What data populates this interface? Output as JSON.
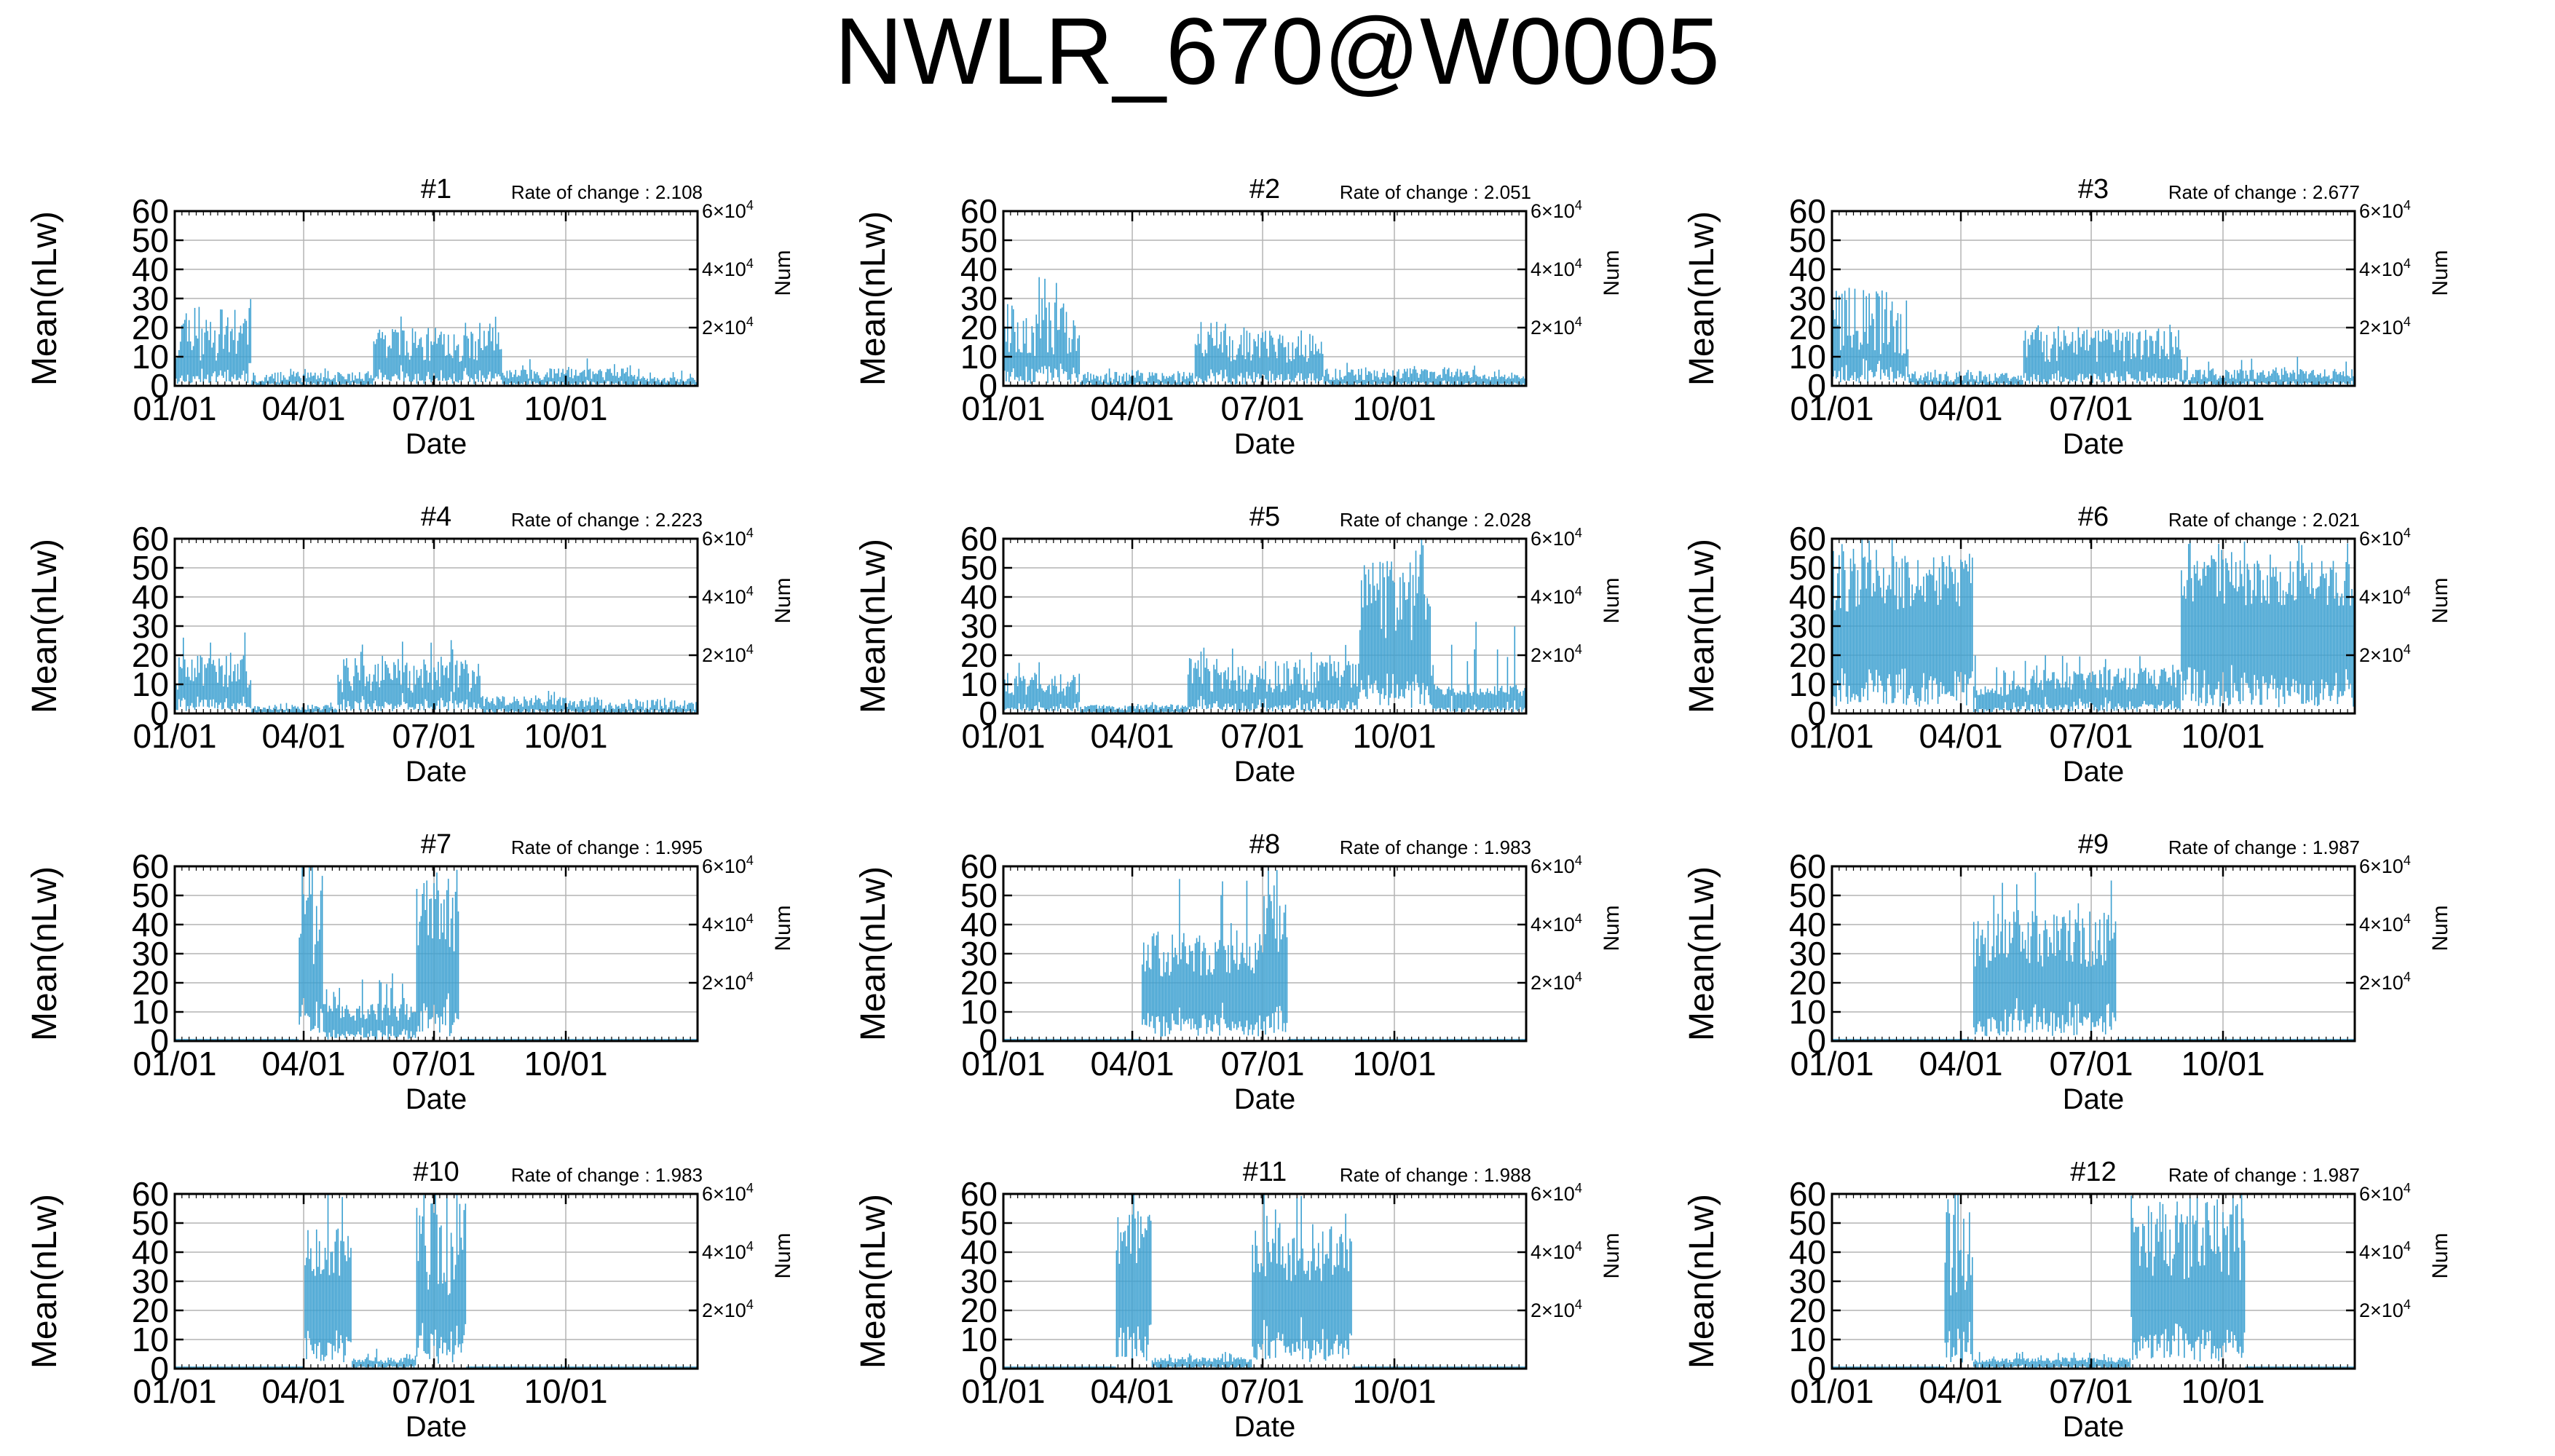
{
  "figure": {
    "title": "NWLR_670@W0005",
    "line_color": "#3a9fd0",
    "grid_color": "#b4b4b4"
  },
  "chart_data": [
    {
      "type": "bar",
      "title": "#1",
      "annotation": "Rate of change : 2.108",
      "xlabel": "Date",
      "ylabel": "Mean(nLw)",
      "y2label": "Num",
      "x_ticks": [
        "01/01",
        "04/01",
        "07/01",
        "10/01"
      ],
      "y_ticks": [
        "0",
        "10",
        "20",
        "30",
        "40",
        "50",
        "60"
      ],
      "ylim": [
        0,
        60
      ],
      "y2_ticks": [
        {
          "mant": "2",
          "exp": "4",
          "value": 20000
        },
        {
          "mant": "4",
          "exp": "4",
          "value": 40000
        },
        {
          "mant": "6",
          "exp": "4",
          "value": 60000
        }
      ],
      "y2lim": [
        0,
        60000
      ],
      "grid": true,
      "pattern": {
        "segments": [
          [
            1,
            55,
            18,
            10,
            30
          ],
          [
            55,
            140,
            3,
            2,
            6
          ],
          [
            140,
            230,
            14,
            6,
            24
          ],
          [
            230,
            330,
            4,
            2,
            10
          ],
          [
            330,
            366,
            2,
            1,
            6
          ]
        ],
        "seed": 11
      }
    },
    {
      "type": "bar",
      "title": "#2",
      "annotation": "Rate of change : 2.051",
      "xlabel": "Date",
      "ylabel": "Mean(nLw)",
      "y2label": "Num",
      "x_ticks": [
        "01/01",
        "04/01",
        "07/01",
        "10/01"
      ],
      "y_ticks": [
        "0",
        "10",
        "20",
        "30",
        "40",
        "50",
        "60"
      ],
      "ylim": [
        0,
        60
      ],
      "y2_ticks": [
        {
          "mant": "2",
          "exp": "4",
          "value": 20000
        },
        {
          "mant": "4",
          "exp": "4",
          "value": 40000
        },
        {
          "mant": "6",
          "exp": "4",
          "value": 60000
        }
      ],
      "y2lim": [
        0,
        60000
      ],
      "grid": true,
      "pattern": {
        "segments": [
          [
            1,
            55,
            20,
            10,
            38
          ],
          [
            55,
            135,
            3,
            2,
            6
          ],
          [
            135,
            225,
            14,
            6,
            22
          ],
          [
            225,
            330,
            4,
            2,
            8
          ],
          [
            330,
            366,
            3,
            1,
            7
          ]
        ],
        "seed": 23
      }
    },
    {
      "type": "bar",
      "title": "#3",
      "annotation": "Rate of change : 2.677",
      "xlabel": "Date",
      "ylabel": "Mean(nLw)",
      "y2label": "Num",
      "x_ticks": [
        "01/01",
        "04/01",
        "07/01",
        "10/01"
      ],
      "y_ticks": [
        "0",
        "10",
        "20",
        "30",
        "40",
        "50",
        "60"
      ],
      "ylim": [
        0,
        60
      ],
      "y2_ticks": [
        {
          "mant": "2",
          "exp": "4",
          "value": 20000
        },
        {
          "mant": "4",
          "exp": "4",
          "value": 40000
        },
        {
          "mant": "6",
          "exp": "4",
          "value": 60000
        }
      ],
      "y2lim": [
        0,
        60000
      ],
      "grid": true,
      "pattern": {
        "segments": [
          [
            1,
            55,
            22,
            12,
            36
          ],
          [
            55,
            135,
            3,
            2,
            6
          ],
          [
            135,
            245,
            14,
            6,
            22
          ],
          [
            245,
            330,
            4,
            2,
            10
          ],
          [
            330,
            366,
            4,
            2,
            9
          ]
        ],
        "seed": 37
      }
    },
    {
      "type": "bar",
      "title": "#4",
      "annotation": "Rate of change : 2.223",
      "xlabel": "Date",
      "ylabel": "Mean(nLw)",
      "y2label": "Num",
      "x_ticks": [
        "01/01",
        "04/01",
        "07/01",
        "10/01"
      ],
      "y_ticks": [
        "0",
        "10",
        "20",
        "30",
        "40",
        "50",
        "60"
      ],
      "ylim": [
        0,
        60
      ],
      "y2_ticks": [
        {
          "mant": "2",
          "exp": "4",
          "value": 20000
        },
        {
          "mant": "4",
          "exp": "4",
          "value": 40000
        },
        {
          "mant": "6",
          "exp": "4",
          "value": 60000
        }
      ],
      "y2lim": [
        0,
        60000
      ],
      "grid": true,
      "pattern": {
        "segments": [
          [
            1,
            55,
            14,
            6,
            28
          ],
          [
            55,
            115,
            2,
            1,
            4
          ],
          [
            115,
            215,
            13,
            6,
            26
          ],
          [
            215,
            300,
            4,
            2,
            8
          ],
          [
            300,
            366,
            3,
            2,
            6
          ]
        ],
        "seed": 41
      }
    },
    {
      "type": "bar",
      "title": "#5",
      "annotation": "Rate of change : 2.028",
      "xlabel": "Date",
      "ylabel": "Mean(nLw)",
      "y2label": "Num",
      "x_ticks": [
        "01/01",
        "04/01",
        "07/01",
        "10/01"
      ],
      "y_ticks": [
        "0",
        "10",
        "20",
        "30",
        "40",
        "50",
        "60"
      ],
      "ylim": [
        0,
        60
      ],
      "y2_ticks": [
        {
          "mant": "2",
          "exp": "4",
          "value": 20000
        },
        {
          "mant": "4",
          "exp": "4",
          "value": 40000
        },
        {
          "mant": "6",
          "exp": "4",
          "value": 60000
        }
      ],
      "y2lim": [
        0,
        60000
      ],
      "grid": true,
      "pattern": {
        "segments": [
          [
            1,
            55,
            10,
            4,
            20
          ],
          [
            55,
            130,
            2,
            1,
            4
          ],
          [
            130,
            250,
            13,
            6,
            24
          ],
          [
            250,
            300,
            40,
            15,
            60
          ],
          [
            300,
            366,
            8,
            2,
            40
          ]
        ],
        "seed": 53
      }
    },
    {
      "type": "bar",
      "title": "#6",
      "annotation": "Rate of change : 2.021",
      "xlabel": "Date",
      "ylabel": "Mean(nLw)",
      "y2label": "Num",
      "x_ticks": [
        "01/01",
        "04/01",
        "07/01",
        "10/01"
      ],
      "y_ticks": [
        "0",
        "10",
        "20",
        "30",
        "40",
        "50",
        "60"
      ],
      "ylim": [
        0,
        60
      ],
      "y2_ticks": [
        {
          "mant": "2",
          "exp": "4",
          "value": 20000
        },
        {
          "mant": "4",
          "exp": "4",
          "value": 40000
        },
        {
          "mant": "6",
          "exp": "4",
          "value": 60000
        }
      ],
      "y2lim": [
        0,
        60000
      ],
      "grid": true,
      "pattern": {
        "segments": [
          [
            1,
            100,
            45,
            10,
            60
          ],
          [
            100,
            140,
            8,
            2,
            20
          ],
          [
            140,
            245,
            12,
            4,
            20
          ],
          [
            245,
            366,
            45,
            8,
            60
          ]
        ],
        "seed": 67
      }
    },
    {
      "type": "bar",
      "title": "#7",
      "annotation": "Rate of change : 1.995",
      "xlabel": "Date",
      "ylabel": "Mean(nLw)",
      "y2label": "Num",
      "x_ticks": [
        "01/01",
        "04/01",
        "07/01",
        "10/01"
      ],
      "y_ticks": [
        "0",
        "10",
        "20",
        "30",
        "40",
        "50",
        "60"
      ],
      "ylim": [
        0,
        60
      ],
      "y2_ticks": [
        {
          "mant": "2",
          "exp": "4",
          "value": 20000
        },
        {
          "mant": "4",
          "exp": "4",
          "value": 40000
        },
        {
          "mant": "6",
          "exp": "4",
          "value": 60000
        }
      ],
      "y2lim": [
        0,
        60000
      ],
      "grid": true,
      "pattern": {
        "segments": [
          [
            1,
            88,
            0,
            0,
            0
          ],
          [
            88,
            105,
            45,
            20,
            60
          ],
          [
            105,
            170,
            10,
            3,
            25
          ],
          [
            170,
            200,
            45,
            15,
            60
          ],
          [
            200,
            366,
            0,
            0,
            0
          ]
        ],
        "seed": 71
      }
    },
    {
      "type": "bar",
      "title": "#8",
      "annotation": "Rate of change : 1.983",
      "xlabel": "Date",
      "ylabel": "Mean(nLw)",
      "y2label": "Num",
      "x_ticks": [
        "01/01",
        "04/01",
        "07/01",
        "10/01"
      ],
      "y_ticks": [
        "0",
        "10",
        "20",
        "30",
        "40",
        "50",
        "60"
      ],
      "ylim": [
        0,
        60
      ],
      "y2_ticks": [
        {
          "mant": "2",
          "exp": "4",
          "value": 20000
        },
        {
          "mant": "4",
          "exp": "4",
          "value": 40000
        },
        {
          "mant": "6",
          "exp": "4",
          "value": 60000
        }
      ],
      "y2lim": [
        0,
        60000
      ],
      "grid": true,
      "pattern": {
        "segments": [
          [
            1,
            98,
            0,
            0,
            0
          ],
          [
            98,
            180,
            30,
            8,
            60
          ],
          [
            180,
            200,
            45,
            15,
            60
          ],
          [
            200,
            366,
            0,
            0,
            0
          ]
        ],
        "seed": 83
      }
    },
    {
      "type": "bar",
      "title": "#9",
      "annotation": "Rate of change : 1.987",
      "xlabel": "Date",
      "ylabel": "Mean(nLw)",
      "y2label": "Num",
      "x_ticks": [
        "01/01",
        "04/01",
        "07/01",
        "10/01"
      ],
      "y_ticks": [
        "0",
        "10",
        "20",
        "30",
        "40",
        "50",
        "60"
      ],
      "ylim": [
        0,
        60
      ],
      "y2_ticks": [
        {
          "mant": "2",
          "exp": "4",
          "value": 20000
        },
        {
          "mant": "4",
          "exp": "4",
          "value": 40000
        },
        {
          "mant": "6",
          "exp": "4",
          "value": 60000
        }
      ],
      "y2lim": [
        0,
        60000
      ],
      "grid": true,
      "pattern": {
        "segments": [
          [
            1,
            100,
            0,
            0,
            0
          ],
          [
            100,
            200,
            35,
            10,
            60
          ],
          [
            200,
            366,
            0,
            0,
            0
          ]
        ],
        "seed": 97
      }
    },
    {
      "type": "bar",
      "title": "#10",
      "annotation": "Rate of change : 1.983",
      "xlabel": "Date",
      "ylabel": "Mean(nLw)",
      "y2label": "Num",
      "x_ticks": [
        "01/01",
        "04/01",
        "07/01",
        "10/01"
      ],
      "y_ticks": [
        "0",
        "10",
        "20",
        "30",
        "40",
        "50",
        "60"
      ],
      "ylim": [
        0,
        60
      ],
      "y2_ticks": [
        {
          "mant": "2",
          "exp": "4",
          "value": 20000
        },
        {
          "mant": "4",
          "exp": "4",
          "value": 40000
        },
        {
          "mant": "6",
          "exp": "4",
          "value": 60000
        }
      ],
      "y2lim": [
        0,
        60000
      ],
      "grid": true,
      "pattern": {
        "segments": [
          [
            1,
            92,
            0,
            0,
            0
          ],
          [
            92,
            125,
            40,
            10,
            60
          ],
          [
            125,
            170,
            3,
            1,
            8
          ],
          [
            170,
            205,
            45,
            20,
            60
          ],
          [
            205,
            366,
            0,
            0,
            0
          ]
        ],
        "seed": 101
      }
    },
    {
      "type": "bar",
      "title": "#11",
      "annotation": "Rate of change : 1.988",
      "xlabel": "Date",
      "ylabel": "Mean(nLw)",
      "y2label": "Num",
      "x_ticks": [
        "01/01",
        "04/01",
        "07/01",
        "10/01"
      ],
      "y_ticks": [
        "0",
        "10",
        "20",
        "30",
        "40",
        "50",
        "60"
      ],
      "ylim": [
        0,
        60
      ],
      "y2_ticks": [
        {
          "mant": "2",
          "exp": "4",
          "value": 20000
        },
        {
          "mant": "4",
          "exp": "4",
          "value": 40000
        },
        {
          "mant": "6",
          "exp": "4",
          "value": 60000
        }
      ],
      "y2lim": [
        0,
        60000
      ],
      "grid": true,
      "pattern": {
        "segments": [
          [
            1,
            80,
            0,
            0,
            0
          ],
          [
            80,
            105,
            45,
            10,
            60
          ],
          [
            105,
            175,
            3,
            1,
            6
          ],
          [
            175,
            245,
            40,
            10,
            60
          ],
          [
            245,
            366,
            0,
            0,
            0
          ]
        ],
        "seed": 113
      }
    },
    {
      "type": "bar",
      "title": "#12",
      "annotation": "Rate of change : 1.987",
      "xlabel": "Date",
      "ylabel": "Mean(nLw)",
      "y2label": "Num",
      "x_ticks": [
        "01/01",
        "04/01",
        "07/01",
        "10/01"
      ],
      "y_ticks": [
        "0",
        "10",
        "20",
        "30",
        "40",
        "50",
        "60"
      ],
      "ylim": [
        0,
        60
      ],
      "y2_ticks": [
        {
          "mant": "2",
          "exp": "4",
          "value": 20000
        },
        {
          "mant": "4",
          "exp": "4",
          "value": 40000
        },
        {
          "mant": "6",
          "exp": "4",
          "value": 60000
        }
      ],
      "y2lim": [
        0,
        60000
      ],
      "grid": true,
      "pattern": {
        "segments": [
          [
            1,
            80,
            0,
            0,
            0
          ],
          [
            80,
            100,
            45,
            20,
            60
          ],
          [
            100,
            210,
            3,
            1,
            6
          ],
          [
            210,
            290,
            45,
            15,
            60
          ],
          [
            290,
            366,
            0,
            0,
            0
          ]
        ],
        "seed": 127
      }
    }
  ]
}
